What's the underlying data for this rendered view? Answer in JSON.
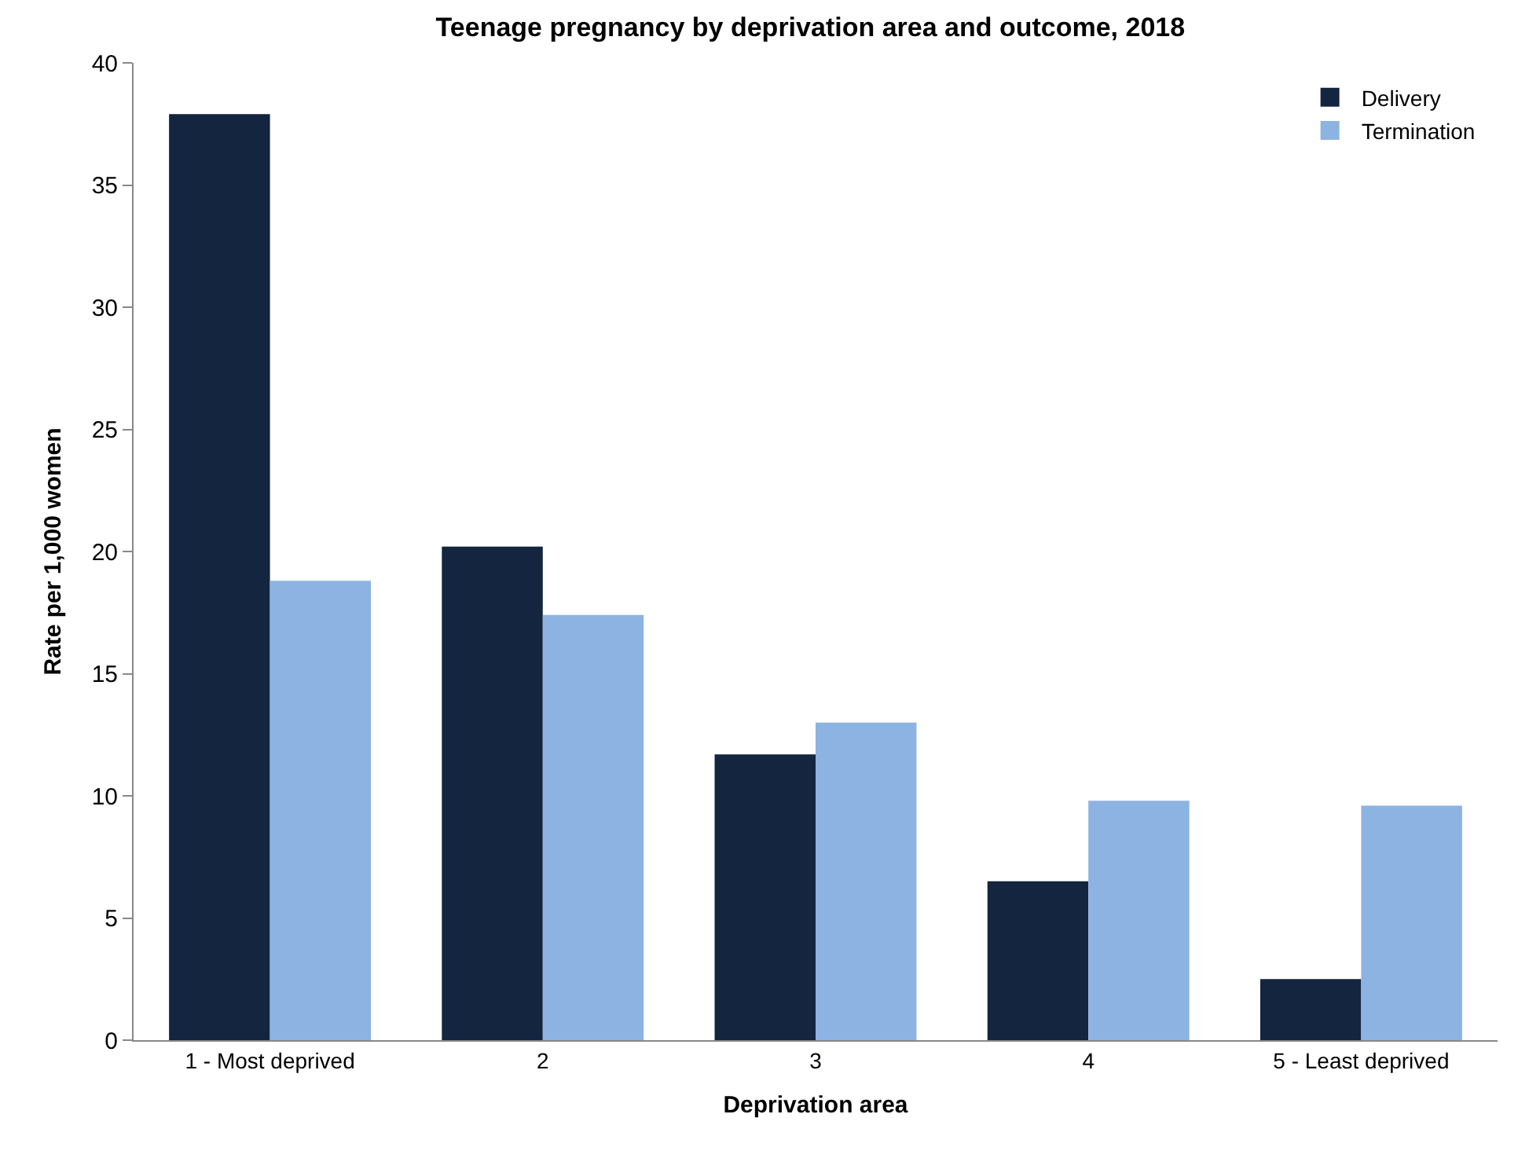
{
  "chart_data": {
    "type": "bar",
    "title": "Teenage pregnancy by deprivation area and outcome, 2018",
    "xlabel": "Deprivation area",
    "ylabel": "Rate per 1,000 women",
    "categories": [
      "1 - Most deprived",
      "2",
      "3",
      "4",
      "5 - Least deprived"
    ],
    "series": [
      {
        "name": "Delivery",
        "color": "#13253f",
        "values": [
          37.9,
          20.2,
          11.7,
          6.5,
          2.5
        ]
      },
      {
        "name": "Termination",
        "color": "#8db3e2",
        "values": [
          18.8,
          17.4,
          13.0,
          9.8,
          9.6
        ]
      }
    ],
    "ylim": [
      0,
      40
    ],
    "yticks": [
      0,
      5,
      10,
      15,
      20,
      25,
      30,
      35,
      40
    ],
    "grid": false,
    "legend": "top right"
  }
}
